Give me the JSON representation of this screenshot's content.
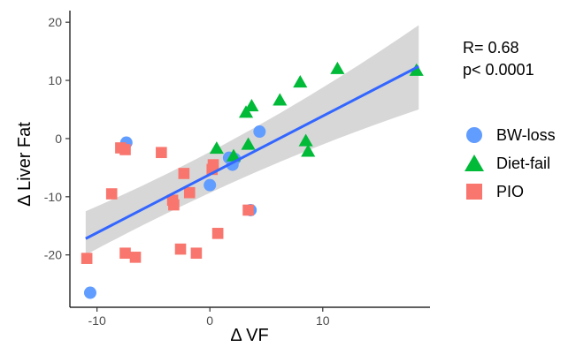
{
  "chart_data": {
    "type": "scatter",
    "xlabel": "Δ VF",
    "ylabel": "Δ Liver Fat",
    "xlim": [
      -12.4,
      19.5
    ],
    "ylim": [
      -29,
      22
    ],
    "x_ticks": [
      -10,
      0,
      10
    ],
    "y_ticks": [
      -20,
      -10,
      0,
      10,
      20
    ],
    "grid": false,
    "legend_position": "right",
    "annotations": [
      "R= 0.68",
      "p< 0.0001"
    ],
    "regression": {
      "x": [
        -11,
        18.5
      ],
      "y": [
        -17.2,
        12.4
      ],
      "ci_lower": [
        -20.0,
        5.0
      ],
      "ci_upper": [
        -12.5,
        19.5
      ],
      "line_color": "#3366ff",
      "band_color": "#d0d0d0"
    },
    "series": [
      {
        "name": "BW-loss",
        "marker": "circle",
        "color": "#619cff",
        "points": [
          [
            -10.6,
            -26.5
          ],
          [
            -7.4,
            -0.7
          ],
          [
            0,
            -8.0
          ],
          [
            1.7,
            -3.3
          ],
          [
            2.2,
            -3.5
          ],
          [
            2.0,
            -4.5
          ],
          [
            4.4,
            1.2
          ],
          [
            3.6,
            -12.3
          ]
        ]
      },
      {
        "name": "Diet-fail",
        "marker": "triangle",
        "color": "#00ba38",
        "points": [
          [
            0.6,
            -1.7
          ],
          [
            3.2,
            4.5
          ],
          [
            3.7,
            5.6
          ],
          [
            6.2,
            6.6
          ],
          [
            8.0,
            9.7
          ],
          [
            11.3,
            12.0
          ],
          [
            18.3,
            11.7
          ],
          [
            8.5,
            -0.4
          ],
          [
            8.7,
            -2.2
          ],
          [
            3.4,
            -1.0
          ],
          [
            2.1,
            -3.0
          ]
        ]
      },
      {
        "name": "PIO",
        "marker": "square",
        "color": "#f8766d",
        "points": [
          [
            -10.9,
            -20.6
          ],
          [
            -8.7,
            -9.5
          ],
          [
            -7.9,
            -1.6
          ],
          [
            -7.5,
            -1.9
          ],
          [
            -7.5,
            -19.7
          ],
          [
            -6.6,
            -20.4
          ],
          [
            -4.3,
            -2.4
          ],
          [
            -3.3,
            -10.6
          ],
          [
            -3.2,
            -11.4
          ],
          [
            -2.6,
            -19.0
          ],
          [
            -2.3,
            -6.0
          ],
          [
            -1.8,
            -9.3
          ],
          [
            -1.2,
            -19.7
          ],
          [
            0.2,
            -5.3
          ],
          [
            0.3,
            -4.5
          ],
          [
            0.7,
            -16.3
          ],
          [
            3.4,
            -12.3
          ]
        ]
      }
    ]
  }
}
